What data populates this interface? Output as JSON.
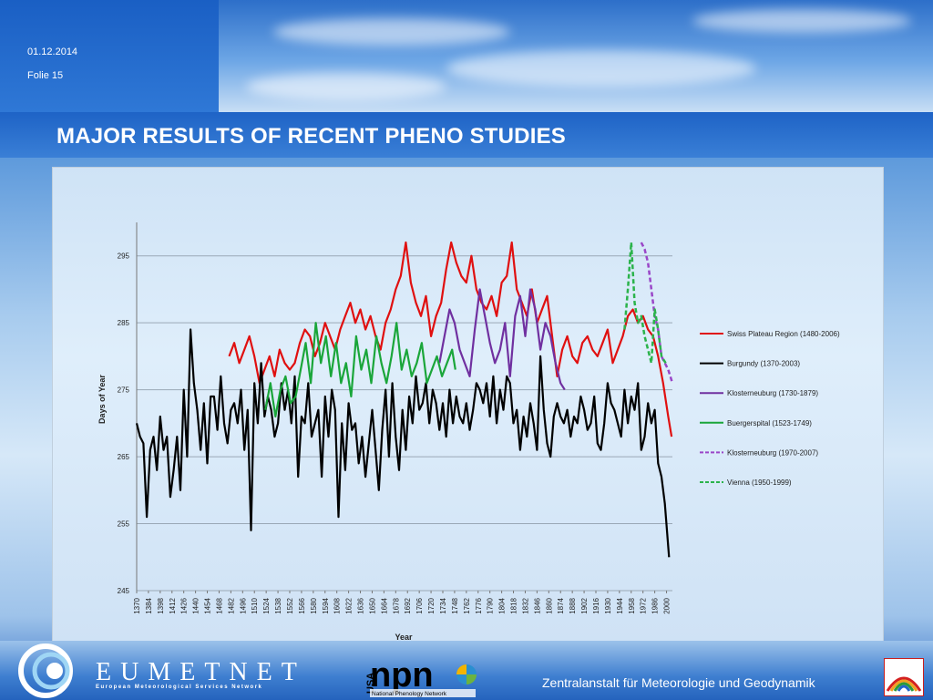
{
  "header": {
    "date": "01.12.2014",
    "slide": "Folie 15"
  },
  "title": "MAJOR RESULTS OF RECENT PHENO STUDIES",
  "footer": {
    "eumetnet": "EUMETNET",
    "eumetnet_sub": "European Meteorological Services Network",
    "npn_country": "USA",
    "npn_mark": "npn",
    "npn_sub": "National Phenology Network",
    "institute": "Zentralanstalt für Meteorologie und Geodynamik"
  },
  "colors": {
    "swiss": "#e01010",
    "burgundy": "#000000",
    "klosterneuburg": "#7030a0",
    "buergerspital": "#1aa63a",
    "klosterneuburg2": "#9a46c8",
    "vienna": "#2bb34b"
  },
  "chart_data": {
    "type": "line",
    "title": "",
    "xlabel": "Year",
    "ylabel": "Days of Year",
    "ylim": [
      245,
      300
    ],
    "yticks": [
      245,
      255,
      265,
      275,
      285,
      295
    ],
    "xlim": [
      1370,
      2007
    ],
    "xticks": [
      1370,
      1384,
      1398,
      1412,
      1426,
      1440,
      1454,
      1468,
      1482,
      1496,
      1510,
      1524,
      1538,
      1552,
      1566,
      1580,
      1594,
      1608,
      1622,
      1636,
      1650,
      1664,
      1678,
      1692,
      1706,
      1720,
      1734,
      1748,
      1762,
      1776,
      1790,
      1804,
      1818,
      1832,
      1846,
      1860,
      1874,
      1888,
      1902,
      1916,
      1930,
      1944,
      1958,
      1972,
      1986,
      2000
    ],
    "grid": true,
    "legend_position": "right",
    "series": [
      {
        "name": "Swiss Plateau Region (1480-2006)",
        "style": "solid",
        "x": [
          1480,
          1486,
          1492,
          1498,
          1504,
          1510,
          1516,
          1522,
          1528,
          1534,
          1540,
          1546,
          1552,
          1558,
          1564,
          1570,
          1576,
          1582,
          1588,
          1594,
          1600,
          1606,
          1612,
          1618,
          1624,
          1630,
          1636,
          1642,
          1648,
          1654,
          1660,
          1666,
          1672,
          1678,
          1684,
          1690,
          1696,
          1702,
          1708,
          1714,
          1720,
          1726,
          1732,
          1738,
          1744,
          1750,
          1756,
          1762,
          1768,
          1774,
          1780,
          1786,
          1792,
          1798,
          1804,
          1810,
          1816,
          1822,
          1828,
          1834,
          1840,
          1846,
          1852,
          1858,
          1864,
          1870,
          1876,
          1882,
          1888,
          1894,
          1900,
          1906,
          1912,
          1918,
          1924,
          1930,
          1936,
          1942,
          1948,
          1954,
          1960,
          1966,
          1972,
          1978,
          1984,
          1990,
          1996,
          2002,
          2006
        ],
        "y": [
          280,
          282,
          279,
          281,
          283,
          280,
          276,
          278,
          280,
          277,
          281,
          279,
          278,
          279,
          282,
          284,
          283,
          280,
          282,
          285,
          283,
          281,
          284,
          286,
          288,
          285,
          287,
          284,
          286,
          283,
          281,
          285,
          287,
          290,
          292,
          297,
          291,
          288,
          286,
          289,
          283,
          286,
          288,
          293,
          297,
          294,
          292,
          291,
          295,
          290,
          288,
          287,
          289,
          286,
          291,
          292,
          297,
          290,
          288,
          286,
          290,
          285,
          287,
          289,
          283,
          277,
          281,
          283,
          280,
          279,
          282,
          283,
          281,
          280,
          282,
          284,
          279,
          281,
          283,
          286,
          287,
          285,
          286,
          284,
          283,
          280,
          276,
          271,
          268
        ]
      },
      {
        "name": "Burgundy (1370-2003)",
        "style": "solid",
        "x": [
          1370,
          1374,
          1378,
          1382,
          1386,
          1390,
          1394,
          1398,
          1402,
          1406,
          1410,
          1414,
          1418,
          1422,
          1426,
          1430,
          1434,
          1438,
          1442,
          1446,
          1450,
          1454,
          1458,
          1462,
          1466,
          1470,
          1474,
          1478,
          1482,
          1486,
          1490,
          1494,
          1498,
          1502,
          1506,
          1510,
          1514,
          1518,
          1522,
          1526,
          1530,
          1534,
          1538,
          1542,
          1546,
          1550,
          1554,
          1558,
          1562,
          1566,
          1570,
          1574,
          1578,
          1582,
          1586,
          1590,
          1594,
          1598,
          1602,
          1606,
          1610,
          1614,
          1618,
          1622,
          1626,
          1630,
          1634,
          1638,
          1642,
          1646,
          1650,
          1654,
          1658,
          1662,
          1666,
          1670,
          1674,
          1678,
          1682,
          1686,
          1690,
          1694,
          1698,
          1702,
          1706,
          1710,
          1714,
          1718,
          1722,
          1726,
          1730,
          1734,
          1738,
          1742,
          1746,
          1750,
          1754,
          1758,
          1762,
          1766,
          1770,
          1774,
          1778,
          1782,
          1786,
          1790,
          1794,
          1798,
          1802,
          1806,
          1810,
          1814,
          1818,
          1822,
          1826,
          1830,
          1834,
          1838,
          1842,
          1846,
          1850,
          1854,
          1858,
          1862,
          1866,
          1870,
          1874,
          1878,
          1882,
          1886,
          1890,
          1894,
          1898,
          1902,
          1906,
          1910,
          1914,
          1918,
          1922,
          1926,
          1930,
          1934,
          1938,
          1942,
          1946,
          1950,
          1954,
          1958,
          1962,
          1966,
          1970,
          1974,
          1978,
          1982,
          1986,
          1990,
          1994,
          1998,
          2003
        ],
        "y": [
          270,
          268,
          267,
          256,
          266,
          268,
          263,
          271,
          266,
          268,
          259,
          263,
          268,
          260,
          275,
          265,
          284,
          276,
          272,
          266,
          273,
          264,
          274,
          274,
          269,
          277,
          270,
          267,
          272,
          273,
          270,
          275,
          266,
          272,
          254,
          276,
          270,
          279,
          271,
          274,
          272,
          268,
          270,
          276,
          272,
          275,
          270,
          277,
          262,
          271,
          270,
          276,
          268,
          270,
          272,
          262,
          274,
          268,
          275,
          272,
          256,
          270,
          263,
          273,
          269,
          270,
          264,
          268,
          262,
          267,
          272,
          266,
          260,
          269,
          275,
          265,
          276,
          268,
          263,
          272,
          266,
          274,
          270,
          277,
          272,
          273,
          276,
          270,
          275,
          273,
          269,
          273,
          268,
          275,
          270,
          274,
          271,
          270,
          273,
          269,
          272,
          276,
          275,
          273,
          276,
          271,
          277,
          270,
          275,
          272,
          277,
          276,
          270,
          272,
          266,
          271,
          268,
          273,
          270,
          266,
          280,
          272,
          267,
          265,
          271,
          273,
          271,
          270,
          272,
          268,
          271,
          270,
          274,
          272,
          269,
          270,
          274,
          267,
          266,
          270,
          276,
          273,
          272,
          270,
          268,
          275,
          270,
          274,
          272,
          276,
          266,
          268,
          273,
          270,
          272,
          264,
          262,
          258,
          250
        ]
      },
      {
        "name": "Klosterneuburg (1730-1879)",
        "style": "solid",
        "x": [
          1730,
          1736,
          1742,
          1748,
          1754,
          1760,
          1766,
          1772,
          1778,
          1784,
          1790,
          1796,
          1802,
          1808,
          1814,
          1820,
          1826,
          1832,
          1838,
          1844,
          1850,
          1856,
          1862,
          1868,
          1874,
          1879
        ],
        "y": [
          279,
          283,
          287,
          285,
          281,
          279,
          277,
          284,
          290,
          286,
          282,
          279,
          281,
          285,
          277,
          286,
          289,
          283,
          290,
          287,
          281,
          285,
          283,
          279,
          276,
          275
        ]
      },
      {
        "name": "Buergerspital (1523-1749)",
        "style": "solid",
        "x": [
          1523,
          1529,
          1535,
          1541,
          1547,
          1553,
          1559,
          1565,
          1571,
          1577,
          1583,
          1589,
          1595,
          1601,
          1607,
          1613,
          1619,
          1625,
          1631,
          1637,
          1643,
          1649,
          1655,
          1661,
          1667,
          1673,
          1679,
          1685,
          1691,
          1697,
          1703,
          1709,
          1715,
          1721,
          1727,
          1733,
          1739,
          1745,
          1749
        ],
        "y": [
          272,
          276,
          271,
          275,
          277,
          273,
          274,
          278,
          282,
          276,
          285,
          279,
          283,
          277,
          282,
          276,
          279,
          274,
          283,
          278,
          281,
          276,
          283,
          279,
          276,
          280,
          285,
          278,
          281,
          277,
          279,
          282,
          276,
          278,
          280,
          277,
          279,
          281,
          278
        ]
      },
      {
        "name": "Klosterneuburg (1970-2007)",
        "style": "dashed",
        "x": [
          1970,
          1974,
          1978,
          1982,
          1986,
          1990,
          1994,
          1998,
          2002,
          2007
        ],
        "y": [
          297,
          296,
          294,
          290,
          286,
          284,
          280,
          279,
          278,
          276
        ]
      },
      {
        "name": "Vienna (1950-1999)",
        "style": "dashed",
        "x": [
          1950,
          1954,
          1958,
          1962,
          1966,
          1970,
          1974,
          1978,
          1982,
          1986,
          1990,
          1994,
          1999
        ],
        "y": [
          284,
          290,
          297,
          288,
          285,
          286,
          283,
          281,
          279,
          287,
          284,
          280,
          279
        ]
      }
    ]
  }
}
